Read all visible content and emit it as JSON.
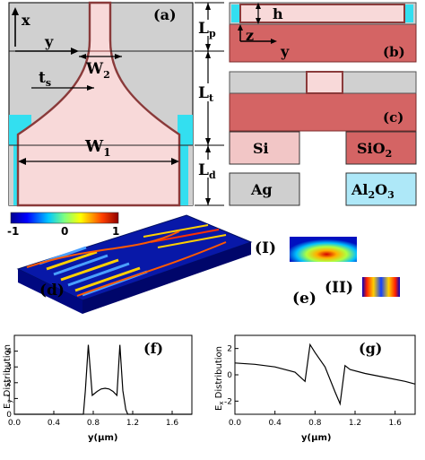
{
  "panels": {
    "a": "(a)",
    "b": "(b)",
    "c": "(c)",
    "d": "(d)",
    "e": "(e)",
    "f": "(f)",
    "g": "(g)"
  },
  "dims": {
    "x": "x",
    "y": "y",
    "ts": "t",
    "ts_sub": "s",
    "W2": "W",
    "W2_sub": "2",
    "W1": "W",
    "W1_sub": "1",
    "Lp": "L",
    "Lp_sub": "p",
    "Lt": "L",
    "Lt_sub": "t",
    "Ld": "L",
    "Ld_sub": "d",
    "h": "h",
    "z": "z",
    "y_b": "y"
  },
  "legend": [
    {
      "label": "Si",
      "sub": "",
      "color": "#f2c6c6"
    },
    {
      "label": "SiO",
      "sub": "2",
      "color": "#d46464"
    },
    {
      "label": "Ag",
      "sub": "",
      "color": "#cfcfcf"
    },
    {
      "label": "Al",
      "sub": "2",
      "label2": "O",
      "sub2": "3",
      "color": "#aee8f8"
    }
  ],
  "colorbar": {
    "min": "-1",
    "mid": "0",
    "max": "1"
  },
  "modes": {
    "I": "(I)",
    "II": "(II)"
  },
  "colors": {
    "si": "#f8d9d9",
    "sio2": "#d46464",
    "ag": "#cfcfcf",
    "al2o3": "#33dff0",
    "edge": "#8a3a3a"
  },
  "chart_data": [
    {
      "type": "line",
      "ylabel": "E",
      "ylabel_sub": "y",
      "ylabel_rest": " Distribution",
      "xlabel": "y(μm)",
      "xlim": [
        0.0,
        1.8
      ],
      "ylim": [
        0,
        5
      ],
      "xticks": [
        "0.0",
        "0.4",
        "0.8",
        "1.2",
        "1.6"
      ],
      "yticks": [
        "0",
        "1",
        "2",
        "3",
        "4"
      ],
      "x": [
        0.0,
        0.7,
        0.72,
        0.75,
        0.79,
        0.84,
        0.88,
        0.92,
        0.96,
        1.0,
        1.04,
        1.07,
        1.1,
        1.13,
        1.15,
        1.18,
        1.8
      ],
      "y": [
        0.0,
        0.0,
        1.5,
        4.4,
        1.2,
        1.45,
        1.6,
        1.65,
        1.6,
        1.45,
        1.2,
        4.4,
        1.5,
        0.3,
        0.0,
        0.0,
        0.0
      ]
    },
    {
      "type": "line",
      "ylabel": "E",
      "ylabel_sub": "x",
      "ylabel_rest": " Distribution",
      "xlabel": "y(μm)",
      "xlim": [
        0.0,
        1.8
      ],
      "ylim": [
        -3,
        3
      ],
      "xticks": [
        "0.0",
        "0.4",
        "0.8",
        "1.2",
        "1.6"
      ],
      "yticks": [
        "-2",
        "0",
        "2"
      ],
      "x": [
        0.0,
        0.2,
        0.4,
        0.6,
        0.7,
        0.75,
        0.8,
        0.9,
        1.0,
        1.05,
        1.1,
        1.15,
        1.3,
        1.5,
        1.7,
        1.8
      ],
      "y": [
        0.9,
        0.8,
        0.6,
        0.2,
        -0.5,
        2.3,
        1.7,
        0.6,
        -1.3,
        -2.2,
        0.7,
        0.4,
        0.1,
        -0.2,
        -0.5,
        -0.7
      ]
    }
  ]
}
